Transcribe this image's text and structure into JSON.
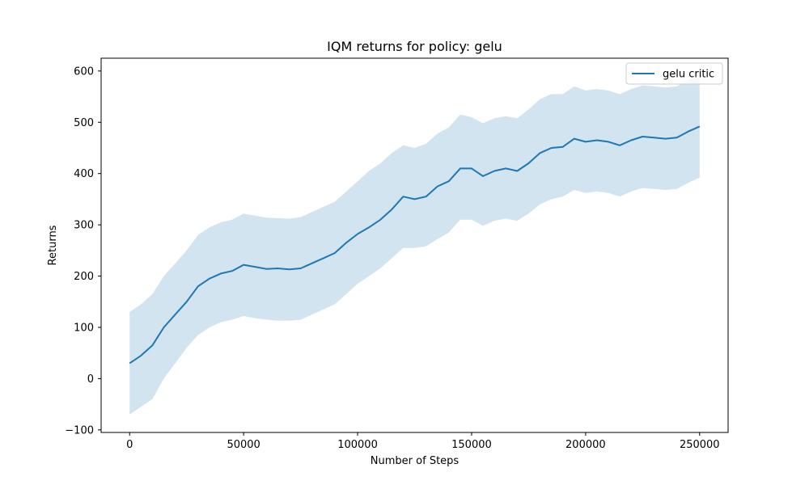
{
  "chart_data": {
    "type": "line",
    "title": "IQM returns for policy: gelu",
    "xlabel": "Number of Steps",
    "ylabel": "Returns",
    "xlim": [
      -12500,
      262500
    ],
    "ylim": [
      -105,
      625
    ],
    "xticks": [
      0,
      50000,
      100000,
      150000,
      200000,
      250000
    ],
    "xtick_labels": [
      "0",
      "50000",
      "100000",
      "150000",
      "200000",
      "250000"
    ],
    "yticks": [
      -100,
      0,
      100,
      200,
      300,
      400,
      500,
      600
    ],
    "ytick_labels": [
      "−100",
      "0",
      "100",
      "200",
      "300",
      "400",
      "500",
      "600"
    ],
    "grid": false,
    "legend_position": "top-right",
    "colors": {
      "line": "#1f77b4",
      "band": "#1f77b4"
    },
    "series": [
      {
        "name": "gelu critic",
        "x": [
          0,
          5000,
          10000,
          15000,
          20000,
          25000,
          30000,
          35000,
          40000,
          45000,
          50000,
          55000,
          60000,
          65000,
          70000,
          75000,
          80000,
          85000,
          90000,
          95000,
          100000,
          105000,
          110000,
          115000,
          120000,
          125000,
          130000,
          135000,
          140000,
          145000,
          150000,
          155000,
          160000,
          165000,
          170000,
          175000,
          180000,
          185000,
          190000,
          195000,
          200000,
          205000,
          210000,
          215000,
          220000,
          225000,
          230000,
          235000,
          240000,
          245000,
          250000
        ],
        "y": [
          30,
          45,
          65,
          100,
          125,
          150,
          180,
          195,
          205,
          210,
          222,
          218,
          214,
          215,
          213,
          215,
          225,
          235,
          245,
          265,
          282,
          295,
          310,
          330,
          355,
          350,
          355,
          375,
          385,
          410,
          410,
          395,
          405,
          410,
          405,
          420,
          440,
          450,
          452,
          468,
          462,
          465,
          462,
          455,
          465,
          472,
          470,
          468,
          470,
          482,
          492
        ],
        "lower": [
          -70,
          -55,
          -40,
          0,
          30,
          60,
          85,
          100,
          110,
          115,
          122,
          118,
          115,
          113,
          113,
          115,
          125,
          135,
          145,
          165,
          185,
          200,
          215,
          235,
          255,
          255,
          258,
          272,
          285,
          310,
          310,
          298,
          308,
          312,
          308,
          322,
          340,
          350,
          355,
          368,
          362,
          365,
          362,
          355,
          365,
          372,
          370,
          368,
          370,
          382,
          392
        ],
        "upper": [
          130,
          145,
          165,
          200,
          225,
          250,
          280,
          295,
          305,
          310,
          322,
          318,
          314,
          313,
          312,
          315,
          325,
          335,
          345,
          365,
          385,
          405,
          420,
          440,
          455,
          450,
          458,
          478,
          490,
          515,
          510,
          498,
          508,
          512,
          508,
          525,
          545,
          555,
          555,
          570,
          562,
          565,
          562,
          555,
          565,
          572,
          570,
          568,
          570,
          582,
          590
        ]
      }
    ]
  }
}
